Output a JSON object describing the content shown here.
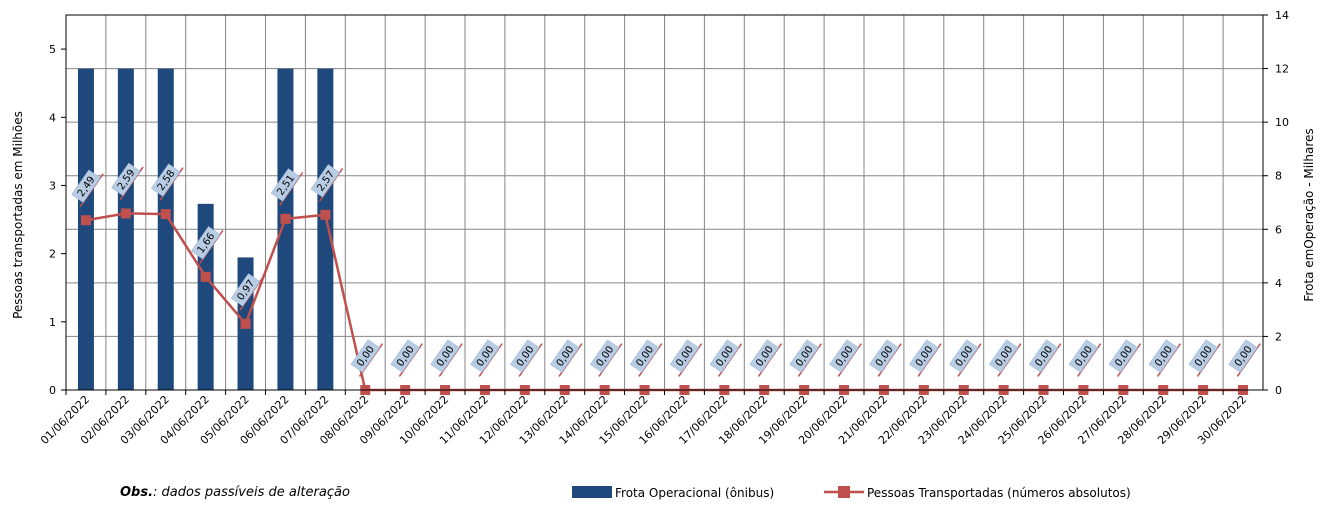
{
  "chart_data": {
    "type": "bar",
    "title": "",
    "categories": [
      "01/06/2022",
      "02/06/2022",
      "03/06/2022",
      "04/06/2022",
      "05/06/2022",
      "06/06/2022",
      "07/06/2022",
      "08/06/2022",
      "09/06/2022",
      "10/06/2022",
      "11/06/2022",
      "12/06/2022",
      "13/06/2022",
      "14/06/2022",
      "15/06/2022",
      "16/06/2022",
      "17/06/2022",
      "18/06/2022",
      "19/06/2022",
      "20/06/2022",
      "21/06/2022",
      "22/06/2022",
      "23/06/2022",
      "24/06/2022",
      "25/06/2022",
      "26/06/2022",
      "27/06/2022",
      "28/06/2022",
      "29/06/2022",
      "30/06/2022"
    ],
    "series": [
      {
        "name": "Frota Operacional (ônibus)",
        "type": "bar",
        "axis": "right",
        "color": "#1F497D",
        "values": [
          12.0,
          12.0,
          12.0,
          6.95,
          4.95,
          12.0,
          12.0,
          0,
          0,
          0,
          0,
          0,
          0,
          0,
          0,
          0,
          0,
          0,
          0,
          0,
          0,
          0,
          0,
          0,
          0,
          0,
          0,
          0,
          0,
          0
        ]
      },
      {
        "name": "Pessoas Transportadas (números absolutos)",
        "type": "line",
        "axis": "left",
        "color": "#C0504D",
        "values": [
          2.49,
          2.59,
          2.58,
          1.66,
          0.97,
          2.51,
          2.57,
          0,
          0,
          0,
          0,
          0,
          0,
          0,
          0,
          0,
          0,
          0,
          0,
          0,
          0,
          0,
          0,
          0,
          0,
          0,
          0,
          0,
          0,
          0
        ],
        "labels": [
          "2,49",
          "2,59",
          "2,58",
          "1,66",
          "0,97",
          "2,51",
          "2,57",
          "0,00",
          "0,00",
          "0,00",
          "0,00",
          "0,00",
          "0,00",
          "0,00",
          "0,00",
          "0,00",
          "0,00",
          "0,00",
          "0,00",
          "0,00",
          "0,00",
          "0,00",
          "0,00",
          "0,00",
          "0,00",
          "0,00",
          "0,00",
          "0,00",
          "0,00",
          "0,00"
        ]
      }
    ],
    "ylabel": "Pessoas transportadas em Milhões",
    "ylim": [
      0,
      5.5
    ],
    "yticks": [
      0,
      1,
      2,
      3,
      4,
      5
    ],
    "y2label": "Frota emOperação - Milhares",
    "y2lim": [
      0,
      14
    ],
    "y2ticks": [
      0,
      2,
      4,
      6,
      8,
      10,
      12,
      14
    ],
    "grid": true,
    "legend_position": "bottom-right"
  },
  "note": {
    "bold": "Obs.",
    "rest": ": dados passíveis de alteração"
  }
}
